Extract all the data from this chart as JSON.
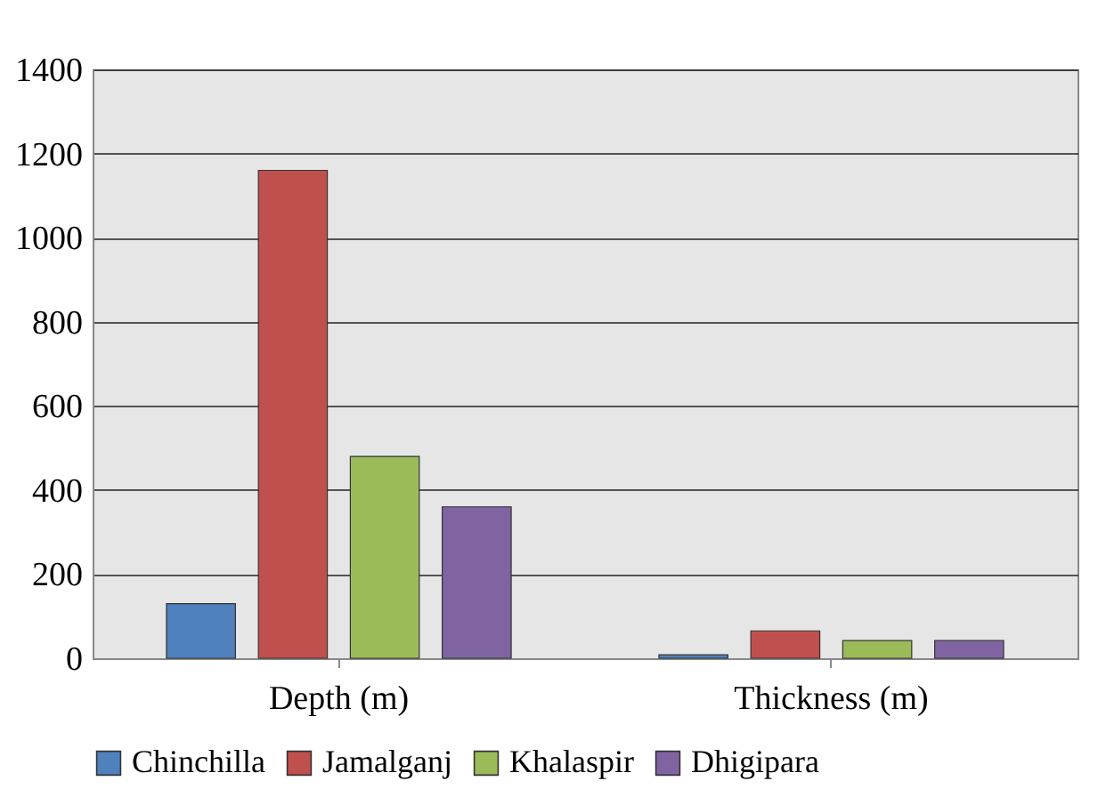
{
  "chart_data": {
    "type": "bar",
    "categories": [
      "Depth (m)",
      "Thickness (m)"
    ],
    "series": [
      {
        "name": "Chinchilla",
        "color": "#4f81bd",
        "values": [
          130,
          8
        ]
      },
      {
        "name": "Jamalganj",
        "color": "#c0504d",
        "values": [
          1160,
          65
        ]
      },
      {
        "name": "Khalaspir",
        "color": "#9bbb59",
        "values": [
          480,
          42
        ]
      },
      {
        "name": "Dhigipara",
        "color": "#8064a2",
        "values": [
          360,
          42
        ]
      }
    ],
    "ylim": [
      0,
      1400
    ],
    "yticks": [
      0,
      200,
      400,
      600,
      800,
      1000,
      1200,
      1400
    ],
    "grid": "y",
    "legend": "bottom"
  }
}
